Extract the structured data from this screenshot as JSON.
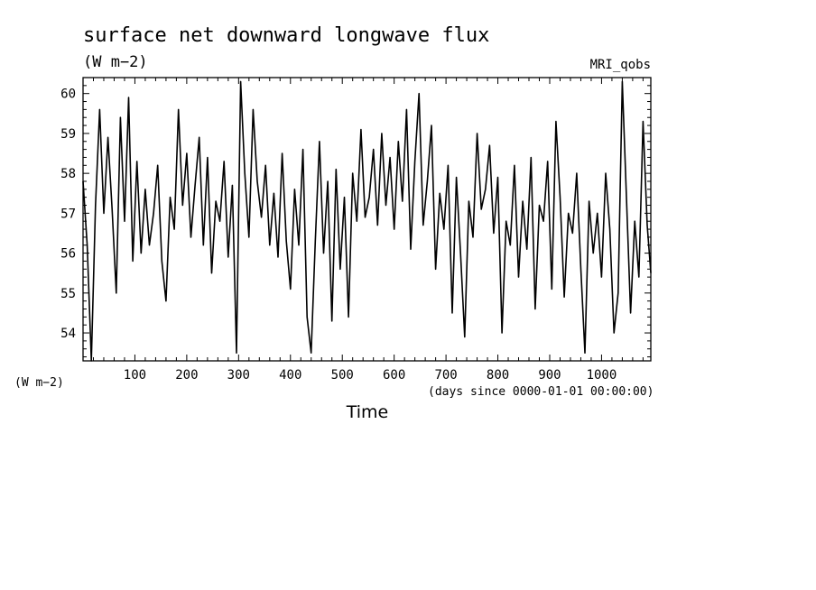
{
  "chart_data": {
    "type": "line",
    "title": "surface net downward longwave flux",
    "subtitle": "(W m−2)",
    "model_label": "MRI_qobs",
    "ylabel": "(W m−2)",
    "xlabel": "Time",
    "xunits": "(days since 0000-01-01 00:00:00)",
    "xlim": [
      0,
      1095
    ],
    "ylim": [
      53.3,
      60.4
    ],
    "x_ticks": [
      100,
      200,
      300,
      400,
      500,
      600,
      700,
      800,
      900,
      1000
    ],
    "y_ticks": [
      54,
      55,
      56,
      57,
      58,
      59,
      60
    ],
    "grid": false,
    "line_color": "#000000",
    "series": [
      {
        "x": [
          0,
          8,
          16,
          24,
          32,
          40,
          48,
          56,
          64,
          72,
          80,
          88,
          96,
          104,
          112,
          120,
          128,
          136,
          144,
          152,
          160,
          168,
          176,
          184,
          192,
          200,
          208,
          216,
          224,
          232,
          240,
          248,
          256,
          264,
          272,
          280,
          288,
          296,
          304,
          312,
          320,
          328,
          336,
          344,
          352,
          360,
          368,
          376,
          384,
          392,
          400,
          408,
          416,
          424,
          432,
          440,
          448,
          456,
          464,
          472,
          480,
          488,
          496,
          504,
          512,
          520,
          528,
          536,
          544,
          552,
          560,
          568,
          576,
          584,
          592,
          600,
          608,
          616,
          624,
          632,
          640,
          648,
          656,
          664,
          672,
          680,
          688,
          696,
          704,
          712,
          720,
          728,
          736,
          744,
          752,
          760,
          768,
          776,
          784,
          792,
          800,
          808,
          816,
          824,
          832,
          840,
          848,
          856,
          864,
          872,
          880,
          888,
          896,
          904,
          912,
          920,
          928,
          936,
          944,
          952,
          960,
          968,
          976,
          984,
          992,
          1000,
          1008,
          1016,
          1024,
          1032,
          1040,
          1048,
          1056,
          1064,
          1072,
          1080,
          1088,
          1095
        ],
        "values": [
          57.8,
          56.2,
          53.3,
          57.2,
          59.6,
          57.0,
          58.9,
          57.1,
          55.0,
          59.4,
          56.8,
          59.9,
          55.8,
          58.3,
          56.0,
          57.6,
          56.2,
          57.0,
          58.2,
          55.8,
          54.8,
          57.4,
          56.6,
          59.6,
          57.2,
          58.5,
          56.4,
          57.7,
          58.9,
          56.2,
          58.4,
          55.5,
          57.3,
          56.8,
          58.3,
          55.9,
          57.7,
          53.5,
          60.3,
          58.0,
          56.4,
          59.6,
          57.8,
          56.9,
          58.2,
          56.2,
          57.5,
          55.9,
          58.5,
          56.3,
          55.1,
          57.6,
          56.2,
          58.6,
          54.4,
          53.5,
          56.3,
          58.8,
          56.0,
          57.8,
          54.3,
          58.1,
          55.6,
          57.4,
          54.4,
          58.0,
          56.8,
          59.1,
          56.9,
          57.4,
          58.6,
          56.7,
          59.0,
          57.2,
          58.4,
          56.6,
          58.8,
          57.3,
          59.6,
          56.1,
          58.3,
          60.0,
          56.7,
          57.8,
          59.2,
          55.6,
          57.5,
          56.6,
          58.2,
          54.5,
          57.9,
          56.0,
          53.9,
          57.3,
          56.4,
          59.0,
          57.1,
          57.6,
          58.7,
          56.5,
          57.9,
          54.0,
          56.8,
          56.2,
          58.2,
          55.4,
          57.3,
          56.1,
          58.4,
          54.6,
          57.2,
          56.8,
          58.3,
          55.1,
          59.3,
          57.4,
          54.9,
          57.0,
          56.5,
          58.0,
          55.6,
          53.5,
          57.3,
          56.0,
          57.0,
          55.4,
          58.0,
          56.6,
          54.0,
          55.0,
          60.3,
          57.4,
          54.5,
          56.8,
          55.4,
          59.3,
          56.7,
          55.5
        ]
      }
    ]
  }
}
